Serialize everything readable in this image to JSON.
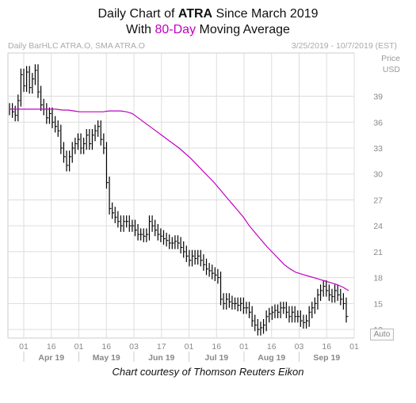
{
  "title": {
    "line1_prefix": "Daily Chart of ",
    "line1_ticker": "ATRA",
    "line1_suffix": " Since March 2019",
    "line2_prefix": "With ",
    "line2_highlight": "80-Day",
    "line2_suffix": " Moving Average"
  },
  "header": {
    "left": "Daily BarHLC ATRA.O, SMA ATRA.O",
    "right": "3/25/2019 - 10/7/2019 (EST)"
  },
  "axis": {
    "y_title_1": "Price",
    "y_title_2": "USD",
    "auto_label": "Auto"
  },
  "credit": "Chart courtesy of Thomson Reuters Eikon",
  "colors": {
    "bars": "#000000",
    "sma": "#c000c0",
    "grid": "#dddddd"
  },
  "chart_data": {
    "type": "line",
    "ylim": [
      11,
      44
    ],
    "y_ticks": [
      12,
      15,
      18,
      21,
      24,
      27,
      30,
      33,
      36,
      39
    ],
    "x_ticks": [
      "01",
      "16",
      "01",
      "16",
      "03",
      "17",
      "01",
      "16",
      "01",
      "16",
      "03",
      "16",
      "01"
    ],
    "months": [
      "Apr 19",
      "May 19",
      "Jun 19",
      "Jul 19",
      "Aug 19",
      "Sep 19"
    ],
    "bars_close": [
      37.5,
      37.2,
      36.8,
      38.5,
      41.5,
      40.2,
      41.8,
      40.0,
      41.0,
      42.0,
      39.5,
      38.0,
      37.5,
      36.5,
      37.0,
      36.0,
      35.5,
      35.0,
      33.0,
      32.0,
      31.0,
      32.0,
      33.0,
      33.5,
      34.0,
      33.0,
      33.5,
      34.5,
      33.5,
      34.5,
      35.0,
      35.5,
      34.0,
      33.0,
      29.0,
      26.0,
      25.5,
      25.0,
      24.5,
      24.0,
      24.5,
      24.5,
      24.0,
      24.0,
      23.5,
      23.0,
      23.0,
      22.8,
      23.0,
      24.5,
      24.0,
      23.5,
      23.0,
      22.8,
      22.5,
      22.3,
      22.0,
      22.0,
      22.2,
      22.0,
      21.5,
      21.0,
      20.5,
      20.0,
      20.5,
      20.2,
      20.5,
      20.0,
      19.5,
      19.0,
      18.8,
      18.5,
      18.3,
      18.0,
      15.5,
      15.0,
      15.5,
      15.2,
      15.0,
      15.0,
      14.8,
      15.0,
      14.5,
      14.5,
      14.0,
      13.0,
      12.5,
      12.0,
      12.2,
      12.5,
      13.5,
      13.8,
      14.0,
      14.2,
      14.0,
      14.5,
      14.5,
      14.0,
      13.5,
      14.0,
      13.5,
      13.5,
      13.0,
      12.8,
      13.0,
      14.0,
      14.5,
      15.0,
      16.0,
      16.5,
      17.0,
      16.5,
      16.0,
      15.8,
      16.5,
      16.0,
      15.5,
      15.0,
      13.5
    ],
    "series": [
      {
        "name": "SMA ATRA.O",
        "values": [
          37.5,
          37.5,
          37.5,
          37.5,
          37.5,
          37.5,
          37.5,
          37.5,
          37.5,
          37.4,
          37.4,
          37.3,
          37.2,
          37.2,
          37.2,
          37.2,
          37.2,
          37.3,
          37.3,
          37.3,
          37.2,
          37.0,
          36.5,
          36.0,
          35.5,
          35.0,
          34.5,
          34.0,
          33.5,
          33.0,
          32.4,
          31.8,
          31.1,
          30.4,
          29.7,
          29.0,
          28.2,
          27.4,
          26.6,
          25.8,
          25.0,
          24.0,
          23.2,
          22.4,
          21.6,
          20.9,
          20.2,
          19.5,
          19.0,
          18.6,
          18.4,
          18.2,
          18.0,
          17.8,
          17.6,
          17.4,
          17.2,
          16.9,
          16.5
        ]
      }
    ],
    "sma_x_start": 0,
    "sma_x_step": 2
  }
}
